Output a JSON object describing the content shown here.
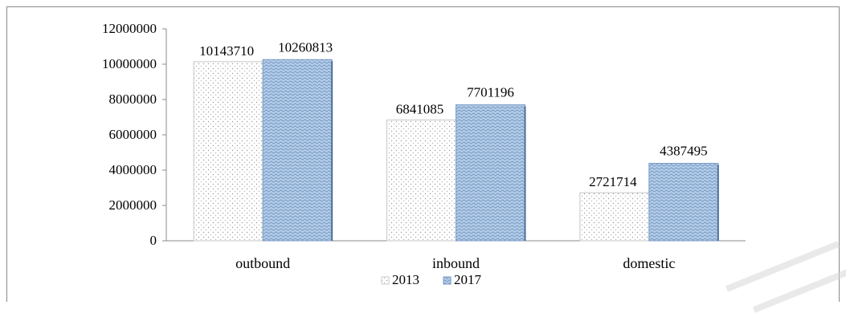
{
  "chart_data": {
    "type": "bar",
    "title": "",
    "xlabel": "",
    "ylabel": "",
    "categories": [
      "outbound",
      "inbound",
      "domestic"
    ],
    "series": [
      {
        "name": "2013",
        "values": [
          10143710,
          6841085,
          2721714
        ],
        "color": "#ffffff",
        "pattern": "dotted"
      },
      {
        "name": "2017",
        "values": [
          10260813,
          7701196,
          4387495
        ],
        "color": "#a8c4e4",
        "pattern": "wave"
      }
    ],
    "ylim": [
      0,
      12000000
    ],
    "yticks": [
      0,
      2000000,
      4000000,
      6000000,
      8000000,
      10000000,
      12000000
    ],
    "ytick_labels": [
      "0",
      "2000000",
      "4000000",
      "6000000",
      "8000000",
      "10000000",
      "12000000"
    ],
    "data_labels": [
      [
        "10143710",
        "6841085",
        "2721714"
      ],
      [
        "10260813",
        "7701196",
        "4387495"
      ]
    ],
    "grid": false,
    "legend_position": "bottom"
  }
}
